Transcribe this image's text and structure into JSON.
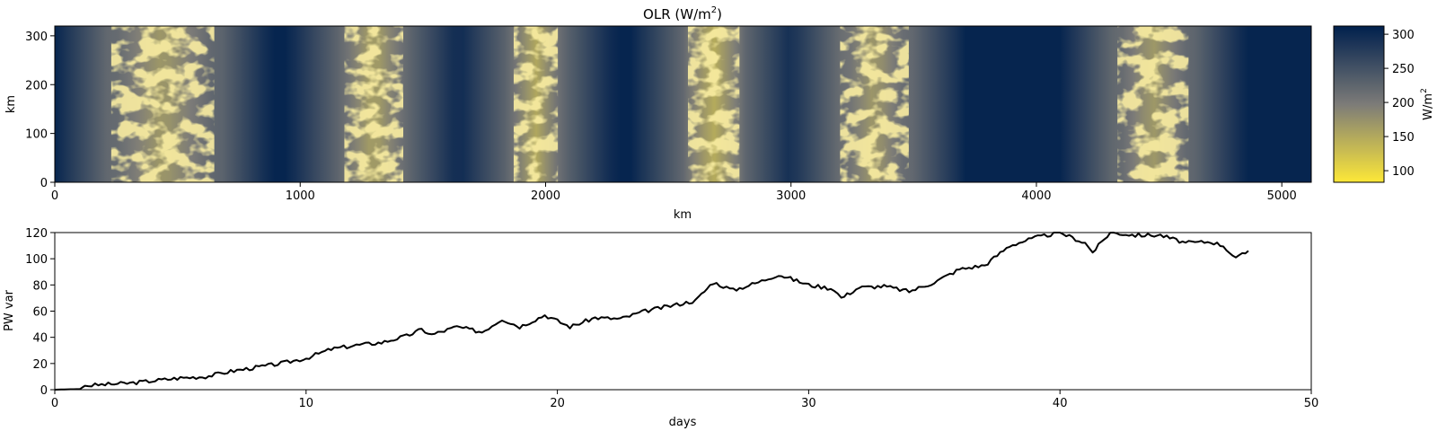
{
  "figure": {
    "title_main": "OLR (W/m",
    "title_sup": "2",
    "title_close": ")"
  },
  "chart_data": [
    {
      "type": "heatmap",
      "title": "OLR (W/m2)",
      "xlabel": "km",
      "ylabel": "km",
      "xlim": [
        0,
        5120
      ],
      "ylim": [
        0,
        320
      ],
      "xticks": [
        0,
        1000,
        2000,
        3000,
        4000,
        5000
      ],
      "yticks": [
        0,
        100,
        200,
        300
      ],
      "colormap": "cividis_r",
      "colors": {
        "low": "#fde838",
        "mid": "#7c7b78",
        "high": "#00204d"
      },
      "colorbar": {
        "label": "W/m2",
        "label_main": "W/m",
        "label_sup": "2",
        "range": [
          83,
          312
        ],
        "ticks": [
          100,
          150,
          200,
          250,
          300
        ]
      },
      "convective_bands": [
        {
          "x_range_km": [
            230,
            650
          ],
          "olr_min": 110
        },
        {
          "x_range_km": [
            1180,
            1420
          ],
          "olr_min": 100
        },
        {
          "x_range_km": [
            1870,
            2050
          ],
          "olr_min": 95
        },
        {
          "x_range_km": [
            2580,
            2790
          ],
          "olr_min": 90
        },
        {
          "x_range_km": [
            3200,
            3480
          ],
          "olr_min": 110
        },
        {
          "x_range_km": [
            4330,
            4620
          ],
          "olr_min": 110
        }
      ]
    },
    {
      "type": "line",
      "xlabel": "days",
      "ylabel": "PW var",
      "xlim": [
        0,
        50
      ],
      "ylim": [
        0,
        120
      ],
      "xticks": [
        0,
        10,
        20,
        30,
        40,
        50
      ],
      "yticks": [
        0,
        20,
        40,
        60,
        80,
        100,
        120
      ],
      "line_color": "#000000",
      "series": [
        {
          "x": [
            0,
            1,
            1.2,
            2,
            3,
            4,
            5,
            6,
            7,
            8,
            9,
            10,
            11,
            12,
            13,
            14,
            14.6,
            15,
            16,
            17,
            17.8,
            18.5,
            19.5,
            20.5,
            21.5,
            22.5,
            23.5,
            24.5,
            25.5,
            26.2,
            27,
            28,
            28.8,
            30,
            31,
            31.3,
            32,
            33,
            34,
            35,
            36,
            37,
            38,
            39,
            40,
            41,
            41.3,
            42,
            43,
            44,
            45,
            46,
            46.5,
            47,
            47.5
          ],
          "y": [
            0,
            0.5,
            3,
            4,
            5,
            7,
            9,
            10,
            14,
            17,
            20,
            24,
            31,
            34,
            36,
            41,
            46,
            42,
            48,
            44,
            54,
            48,
            57,
            48,
            55,
            54,
            60,
            64,
            68,
            82,
            76,
            82,
            88,
            80,
            77,
            70,
            78,
            79,
            75,
            82,
            92,
            95,
            110,
            116,
            120,
            112,
            105,
            120,
            118,
            118,
            112,
            113,
            110,
            100,
            106
          ]
        }
      ]
    }
  ]
}
